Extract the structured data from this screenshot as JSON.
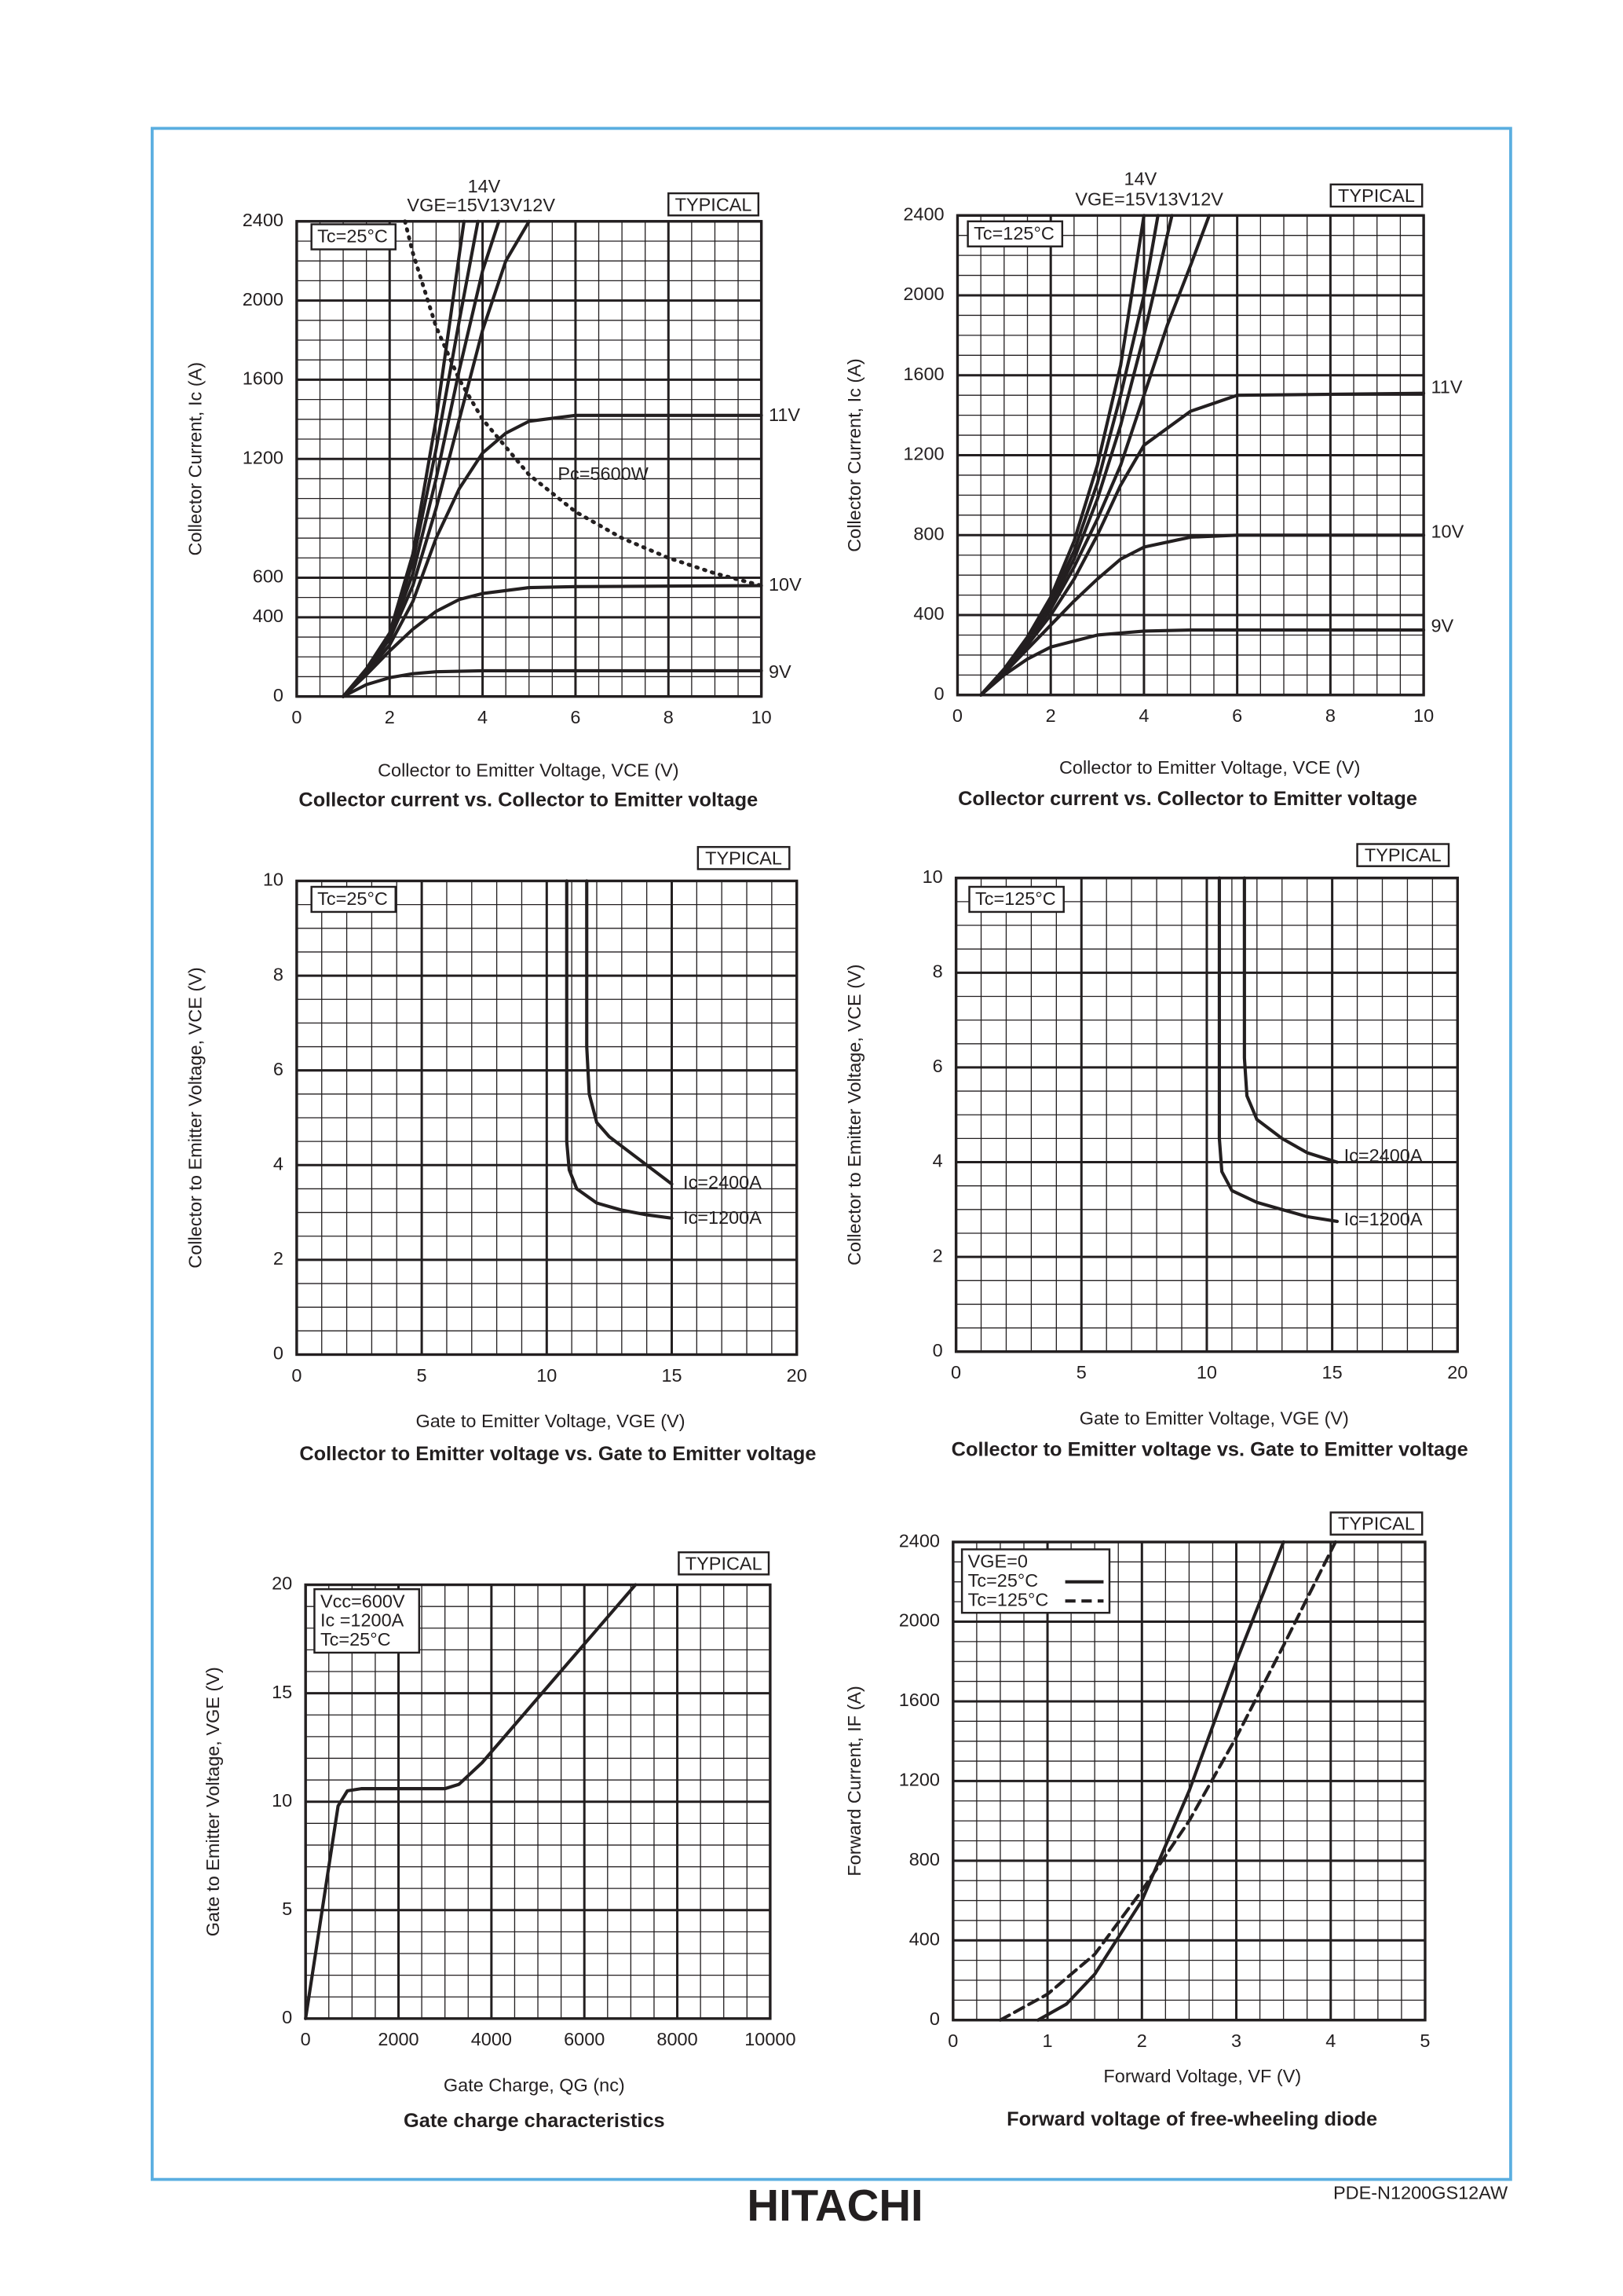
{
  "chart_data": [
    {
      "type": "line",
      "title": "Collector current vs. Collector to Emitter voltage",
      "xlabel": "Collector to Emitter Voltage, VCE (V)",
      "ylabel": "Collector Current, Ic (A)",
      "badge": "TYPICAL",
      "conditions": [
        "Tc=25°C"
      ],
      "annotations": [
        "14V",
        "VGE=15V13V12V"
      ],
      "xlim": [
        0,
        10
      ],
      "ylim": [
        0,
        2400
      ],
      "xticks": [
        0,
        2,
        4,
        6,
        8,
        10
      ],
      "yticks": [
        0,
        400,
        600,
        1200,
        1600,
        2000,
        2400
      ],
      "grid": true,
      "series": [
        {
          "name": "9V",
          "color": "#231f20",
          "dash": "solid",
          "x": [
            1,
            1.5,
            2,
            2.5,
            3,
            4,
            6,
            10
          ],
          "values": [
            0,
            60,
            95,
            115,
            125,
            130,
            130,
            130
          ]
        },
        {
          "name": "10V",
          "color": "#231f20",
          "dash": "solid",
          "x": [
            1,
            1.5,
            2,
            2.5,
            3,
            3.5,
            4,
            5,
            6,
            10
          ],
          "values": [
            0,
            110,
            230,
            340,
            430,
            490,
            520,
            550,
            555,
            560
          ]
        },
        {
          "name": "11V",
          "color": "#231f20",
          "dash": "solid",
          "x": [
            1,
            1.5,
            2,
            2.5,
            3,
            3.5,
            4,
            4.5,
            5,
            6,
            10
          ],
          "values": [
            0,
            120,
            260,
            480,
            800,
            1050,
            1230,
            1330,
            1390,
            1420,
            1420
          ]
        },
        {
          "color": "#231f20",
          "dash": "solid",
          "x": [
            1,
            1.5,
            2,
            2.5,
            3,
            3.5,
            4,
            4.5,
            5
          ],
          "values": [
            0,
            130,
            290,
            560,
            950,
            1400,
            1850,
            2200,
            2400
          ]
        },
        {
          "color": "#231f20",
          "dash": "solid",
          "x": [
            1,
            1.5,
            2,
            2.5,
            3,
            3.5,
            4,
            4.35
          ],
          "values": [
            0,
            130,
            300,
            620,
            1100,
            1650,
            2150,
            2400
          ]
        },
        {
          "color": "#231f20",
          "dash": "solid",
          "x": [
            1,
            1.5,
            2,
            2.5,
            3,
            3.5,
            3.9
          ],
          "values": [
            0,
            135,
            310,
            680,
            1250,
            1900,
            2400
          ]
        },
        {
          "color": "#231f20",
          "dash": "solid",
          "x": [
            1,
            1.5,
            2,
            2.5,
            3,
            3.3,
            3.6
          ],
          "values": [
            0,
            140,
            320,
            720,
            1400,
            1900,
            2400
          ]
        },
        {
          "name": "Pc=5600W",
          "color": "#231f20",
          "dash": "dotted",
          "x": [
            2.33,
            2.5,
            3,
            3.5,
            4,
            5,
            6,
            7,
            8,
            9,
            10
          ],
          "values": [
            2400,
            2240,
            1867,
            1600,
            1400,
            1120,
            933,
            800,
            700,
            622,
            560
          ]
        }
      ]
    },
    {
      "type": "line",
      "title": "Collector current vs. Collector to Emitter voltage",
      "xlabel": "Collector to Emitter Voltage, VCE (V)",
      "ylabel": "Collector Current, Ic (A)",
      "badge": "TYPICAL",
      "conditions": [
        "Tc=125°C"
      ],
      "annotations": [
        "14V",
        "VGE=15V13V12V"
      ],
      "xlim": [
        0,
        10
      ],
      "ylim": [
        0,
        2400
      ],
      "xticks": [
        0,
        2,
        4,
        6,
        8,
        10
      ],
      "yticks": [
        0,
        400,
        800,
        1200,
        1600,
        2000,
        2400
      ],
      "grid": true,
      "series": [
        {
          "name": "9V",
          "color": "#231f20",
          "dash": "solid",
          "x": [
            0.5,
            1,
            1.5,
            2,
            3,
            4,
            5,
            10
          ],
          "values": [
            0,
            100,
            180,
            240,
            300,
            320,
            325,
            325
          ]
        },
        {
          "name": "10V",
          "color": "#231f20",
          "dash": "solid",
          "x": [
            0.5,
            1,
            1.5,
            2,
            2.5,
            3,
            3.5,
            4,
            5,
            6,
            10
          ],
          "values": [
            0,
            110,
            230,
            350,
            470,
            580,
            680,
            740,
            790,
            800,
            800
          ]
        },
        {
          "name": "11V",
          "color": "#231f20",
          "dash": "solid",
          "x": [
            0.5,
            1,
            1.5,
            2,
            2.5,
            3,
            3.5,
            4,
            5,
            6,
            10
          ],
          "values": [
            0,
            115,
            250,
            400,
            580,
            800,
            1050,
            1250,
            1420,
            1500,
            1510
          ]
        },
        {
          "color": "#231f20",
          "dash": "solid",
          "x": [
            0.5,
            1,
            1.5,
            2,
            2.5,
            3,
            3.5,
            4,
            4.5,
            5,
            5.4
          ],
          "values": [
            0,
            120,
            260,
            430,
            640,
            880,
            1150,
            1500,
            1850,
            2150,
            2400
          ]
        },
        {
          "color": "#231f20",
          "dash": "solid",
          "x": [
            0.5,
            1,
            1.5,
            2,
            2.5,
            3,
            3.5,
            4,
            4.4,
            4.6
          ],
          "values": [
            0,
            125,
            270,
            450,
            680,
            980,
            1350,
            1800,
            2200,
            2400
          ]
        },
        {
          "color": "#231f20",
          "dash": "solid",
          "x": [
            0.5,
            1,
            1.5,
            2,
            2.5,
            3,
            3.5,
            4,
            4.3
          ],
          "values": [
            0,
            125,
            280,
            470,
            720,
            1060,
            1500,
            2000,
            2400
          ]
        },
        {
          "color": "#231f20",
          "dash": "solid",
          "x": [
            0.5,
            1,
            1.5,
            2,
            2.5,
            3,
            3.5,
            4
          ],
          "values": [
            0,
            130,
            290,
            490,
            770,
            1150,
            1650,
            2400
          ]
        }
      ]
    },
    {
      "type": "line",
      "title": "Collector to Emitter voltage vs. Gate to Emitter voltage",
      "xlabel": "Gate to Emitter Voltage, VGE (V)",
      "ylabel": "Collector to Emitter Voltage, VCE (V)",
      "badge": "TYPICAL",
      "conditions": [
        "Tc=25°C"
      ],
      "xlim": [
        0,
        20
      ],
      "ylim": [
        0,
        10
      ],
      "xticks": [
        0,
        5,
        10,
        15,
        20
      ],
      "yticks": [
        0,
        2,
        4,
        6,
        8,
        10
      ],
      "grid": true,
      "series": [
        {
          "name": "Ic=2400A",
          "color": "#231f20",
          "dash": "solid",
          "x": [
            11.6,
            11.6,
            11.7,
            12,
            12.5,
            13.5,
            15
          ],
          "values": [
            10,
            6.5,
            5.5,
            4.9,
            4.6,
            4.2,
            3.6
          ]
        },
        {
          "name": "Ic=1200A",
          "color": "#231f20",
          "dash": "solid",
          "x": [
            10.8,
            10.8,
            10.9,
            11.2,
            12,
            13,
            14,
            15
          ],
          "values": [
            10,
            4.5,
            3.9,
            3.5,
            3.2,
            3.05,
            2.95,
            2.88
          ]
        }
      ]
    },
    {
      "type": "line",
      "title": "Collector to Emitter voltage vs. Gate to Emitter voltage",
      "xlabel": "Gate to Emitter Voltage, VGE (V)",
      "ylabel": "Collector to Emitter Voltage, VCE (V)",
      "badge": "TYPICAL",
      "conditions": [
        "Tc=125°C"
      ],
      "xlim": [
        0,
        20
      ],
      "ylim": [
        0,
        10
      ],
      "xticks": [
        0,
        5,
        10,
        15,
        20
      ],
      "yticks": [
        0,
        2,
        4,
        6,
        8,
        10
      ],
      "grid": true,
      "series": [
        {
          "name": "Ic=2400A",
          "color": "#231f20",
          "dash": "solid",
          "x": [
            11.5,
            11.5,
            11.6,
            12,
            13,
            14,
            15.2
          ],
          "values": [
            10,
            6.2,
            5.4,
            4.9,
            4.5,
            4.2,
            4.0
          ]
        },
        {
          "name": "Ic=1200A",
          "color": "#231f20",
          "dash": "solid",
          "x": [
            10.5,
            10.5,
            10.6,
            11,
            12,
            13,
            14,
            15.2
          ],
          "values": [
            10,
            4.5,
            3.8,
            3.4,
            3.15,
            3.0,
            2.85,
            2.75
          ]
        }
      ]
    },
    {
      "type": "line",
      "title": "Gate charge characteristics",
      "xlabel": "Gate Charge, QG (nc)",
      "ylabel": "Gate to Emitter Voltage, VGE (V)",
      "badge": "TYPICAL",
      "conditions": [
        "Vcc=600V",
        "Ic =1200A",
        "Tc=25°C"
      ],
      "xlim": [
        0,
        10000
      ],
      "ylim": [
        0,
        20
      ],
      "xticks": [
        0,
        2000,
        4000,
        6000,
        8000,
        10000
      ],
      "yticks": [
        0,
        5,
        10,
        15,
        20
      ],
      "grid": true,
      "series": [
        {
          "color": "#231f20",
          "dash": "solid",
          "x": [
            0,
            700,
            900,
            1200,
            3000,
            3300,
            3800,
            7100
          ],
          "values": [
            0,
            9.8,
            10.5,
            10.6,
            10.6,
            10.8,
            11.8,
            20
          ]
        }
      ]
    },
    {
      "type": "line",
      "title": "Forward voltage of free-wheeling diode",
      "xlabel": "Forward Voltage, VF (V)",
      "ylabel": "Forward Current, IF (A)",
      "badge": "TYPICAL",
      "conditions": [
        "VGE=0"
      ],
      "legend": "upper left",
      "xlim": [
        0,
        5
      ],
      "ylim": [
        0,
        2400
      ],
      "xticks": [
        0,
        1,
        2,
        3,
        4,
        5
      ],
      "yticks": [
        0,
        400,
        800,
        1200,
        1600,
        2000,
        2400
      ],
      "grid": true,
      "series": [
        {
          "name": "Tc=25°C",
          "color": "#231f20",
          "dash": "solid",
          "x": [
            0.9,
            1.2,
            1.5,
            2,
            2.5,
            3,
            3.5
          ],
          "values": [
            0,
            80,
            230,
            600,
            1150,
            1800,
            2400
          ]
        },
        {
          "name": "Tc=125°C",
          "color": "#231f20",
          "dash": "dashed",
          "x": [
            0.5,
            1,
            1.5,
            2,
            2.5,
            3,
            3.5,
            4.05
          ],
          "values": [
            0,
            130,
            330,
            650,
            1000,
            1420,
            1880,
            2400
          ]
        }
      ]
    }
  ],
  "footer": {
    "brand": "HITACHI",
    "code": "PDE-N1200GS12AW"
  }
}
